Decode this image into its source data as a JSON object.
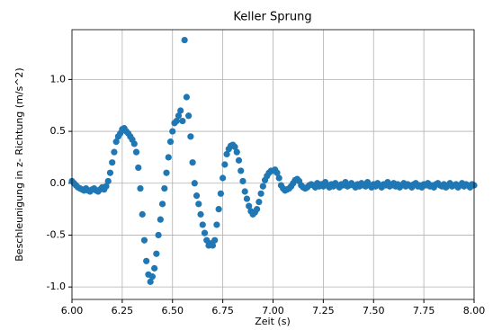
{
  "chart_data": {
    "type": "scatter",
    "title": "Keller Sprung",
    "xlabel": "Zeit (s)",
    "ylabel": "Beschleunigung in z- Richtung (m/s^2)",
    "color": "#1f77b4",
    "grid": true,
    "xlim": [
      6,
      8
    ],
    "ylim": [
      -1.12,
      1.48
    ],
    "xticks": [
      {
        "value": 6,
        "label": "6.00"
      },
      6.25,
      {
        "value": 6.5,
        "label": "6.50"
      },
      6.75,
      {
        "value": 7,
        "label": "7.00"
      },
      7.25,
      {
        "value": 7.5,
        "label": "7.50"
      },
      7.75,
      {
        "value": 8,
        "label": "8.00"
      }
    ],
    "yticks": [
      {
        "value": -1,
        "label": "-1.0"
      },
      -0.5,
      {
        "value": 0,
        "label": "0.0"
      },
      0.5,
      {
        "value": 1,
        "label": "1.0"
      }
    ],
    "x": [
      6,
      6.01,
      6.02,
      6.03,
      6.04,
      6.05,
      6.06,
      6.07,
      6.08,
      6.09,
      6.1,
      6.11,
      6.12,
      6.13,
      6.14,
      6.15,
      6.16,
      6.17,
      6.18,
      6.19,
      6.2,
      6.21,
      6.22,
      6.23,
      6.24,
      6.25,
      6.26,
      6.27,
      6.28,
      6.29,
      6.3,
      6.31,
      6.32,
      6.33,
      6.34,
      6.35,
      6.36,
      6.37,
      6.38,
      6.39,
      6.4,
      6.41,
      6.42,
      6.43,
      6.44,
      6.45,
      6.46,
      6.47,
      6.48,
      6.49,
      6.5,
      6.51,
      6.52,
      6.53,
      6.54,
      6.55,
      6.56,
      6.57,
      6.58,
      6.59,
      6.6,
      6.61,
      6.62,
      6.63,
      6.64,
      6.65,
      6.66,
      6.67,
      6.68,
      6.69,
      6.7,
      6.71,
      6.72,
      6.73,
      6.74,
      6.75,
      6.76,
      6.77,
      6.78,
      6.79,
      6.8,
      6.81,
      6.82,
      6.83,
      6.84,
      6.85,
      6.86,
      6.87,
      6.88,
      6.89,
      6.9,
      6.91,
      6.92,
      6.93,
      6.94,
      6.95,
      6.96,
      6.97,
      6.98,
      6.99,
      7,
      7.01,
      7.02,
      7.03,
      7.04,
      7.05,
      7.06,
      7.07,
      7.08,
      7.09,
      7.1,
      7.11,
      7.12,
      7.13,
      7.14,
      7.15,
      7.16,
      7.17,
      7.18,
      7.19,
      7.2,
      7.21,
      7.22,
      7.23,
      7.24,
      7.25,
      7.26,
      7.27,
      7.28,
      7.29,
      7.3,
      7.31,
      7.32,
      7.33,
      7.34,
      7.35,
      7.36,
      7.37,
      7.38,
      7.39,
      7.4,
      7.41,
      7.42,
      7.43,
      7.44,
      7.45,
      7.46,
      7.47,
      7.48,
      7.49,
      7.5,
      7.51,
      7.52,
      7.53,
      7.54,
      7.55,
      7.56,
      7.57,
      7.58,
      7.59,
      7.6,
      7.61,
      7.62,
      7.63,
      7.64,
      7.65,
      7.66,
      7.67,
      7.68,
      7.69,
      7.7,
      7.71,
      7.72,
      7.73,
      7.74,
      7.75,
      7.76,
      7.77,
      7.78,
      7.79,
      7.8,
      7.81,
      7.82,
      7.83,
      7.84,
      7.85,
      7.86,
      7.87,
      7.88,
      7.89,
      7.9,
      7.91,
      7.92,
      7.93,
      7.94,
      7.95,
      7.96,
      7.97,
      7.98,
      7.99,
      8
    ],
    "values": [
      0.02,
      0.0,
      -0.02,
      -0.04,
      -0.05,
      -0.06,
      -0.07,
      -0.05,
      -0.07,
      -0.08,
      -0.06,
      -0.05,
      -0.07,
      -0.08,
      -0.06,
      -0.04,
      -0.06,
      -0.03,
      0.02,
      0.1,
      0.2,
      0.3,
      0.4,
      0.45,
      0.48,
      0.52,
      0.53,
      0.5,
      0.48,
      0.45,
      0.42,
      0.38,
      0.3,
      0.15,
      -0.05,
      -0.3,
      -0.55,
      -0.75,
      -0.88,
      -0.95,
      -0.9,
      -0.82,
      -0.68,
      -0.5,
      -0.35,
      -0.2,
      -0.05,
      0.1,
      0.25,
      0.4,
      0.5,
      0.58,
      0.6,
      0.65,
      0.7,
      0.6,
      1.38,
      0.83,
      0.65,
      0.45,
      0.2,
      0.0,
      -0.12,
      -0.2,
      -0.3,
      -0.4,
      -0.48,
      -0.55,
      -0.6,
      -0.58,
      -0.6,
      -0.55,
      -0.4,
      -0.25,
      -0.1,
      0.05,
      0.18,
      0.28,
      0.33,
      0.36,
      0.37,
      0.35,
      0.3,
      0.22,
      0.12,
      0.02,
      -0.08,
      -0.15,
      -0.22,
      -0.27,
      -0.3,
      -0.28,
      -0.25,
      -0.18,
      -0.1,
      -0.03,
      0.03,
      0.07,
      0.1,
      0.12,
      0.12,
      0.13,
      0.1,
      0.05,
      -0.02,
      -0.05,
      -0.07,
      -0.06,
      -0.05,
      -0.03,
      0.0,
      0.03,
      0.04,
      0.02,
      -0.02,
      -0.04,
      -0.05,
      -0.04,
      -0.02,
      -0.01,
      -0.02,
      -0.04,
      0.0,
      -0.03,
      -0.01,
      -0.03,
      0.01,
      -0.02,
      -0.04,
      -0.01,
      -0.03,
      0.0,
      -0.02,
      -0.04,
      -0.01,
      -0.02,
      0.01,
      -0.03,
      -0.02,
      0.0,
      -0.02,
      -0.04,
      -0.01,
      -0.03,
      0.0,
      -0.02,
      -0.03,
      0.01,
      -0.02,
      -0.04,
      -0.01,
      -0.03,
      0.0,
      -0.02,
      -0.04,
      -0.01,
      -0.02,
      0.01,
      -0.03,
      -0.02,
      0.0,
      -0.03,
      -0.01,
      -0.04,
      -0.02,
      0.0,
      -0.03,
      -0.01,
      -0.02,
      -0.04,
      -0.01,
      0.0,
      -0.03,
      -0.02,
      -0.04,
      -0.01,
      -0.02,
      0.0,
      -0.03,
      -0.02,
      -0.04,
      -0.01,
      0.0,
      -0.02,
      -0.03,
      -0.01,
      -0.04,
      -0.02,
      0.0,
      -0.03,
      -0.02,
      -0.01,
      -0.04,
      -0.02,
      0.0,
      -0.03,
      -0.01,
      -0.02,
      -0.04,
      -0.01,
      -0.02
    ]
  }
}
